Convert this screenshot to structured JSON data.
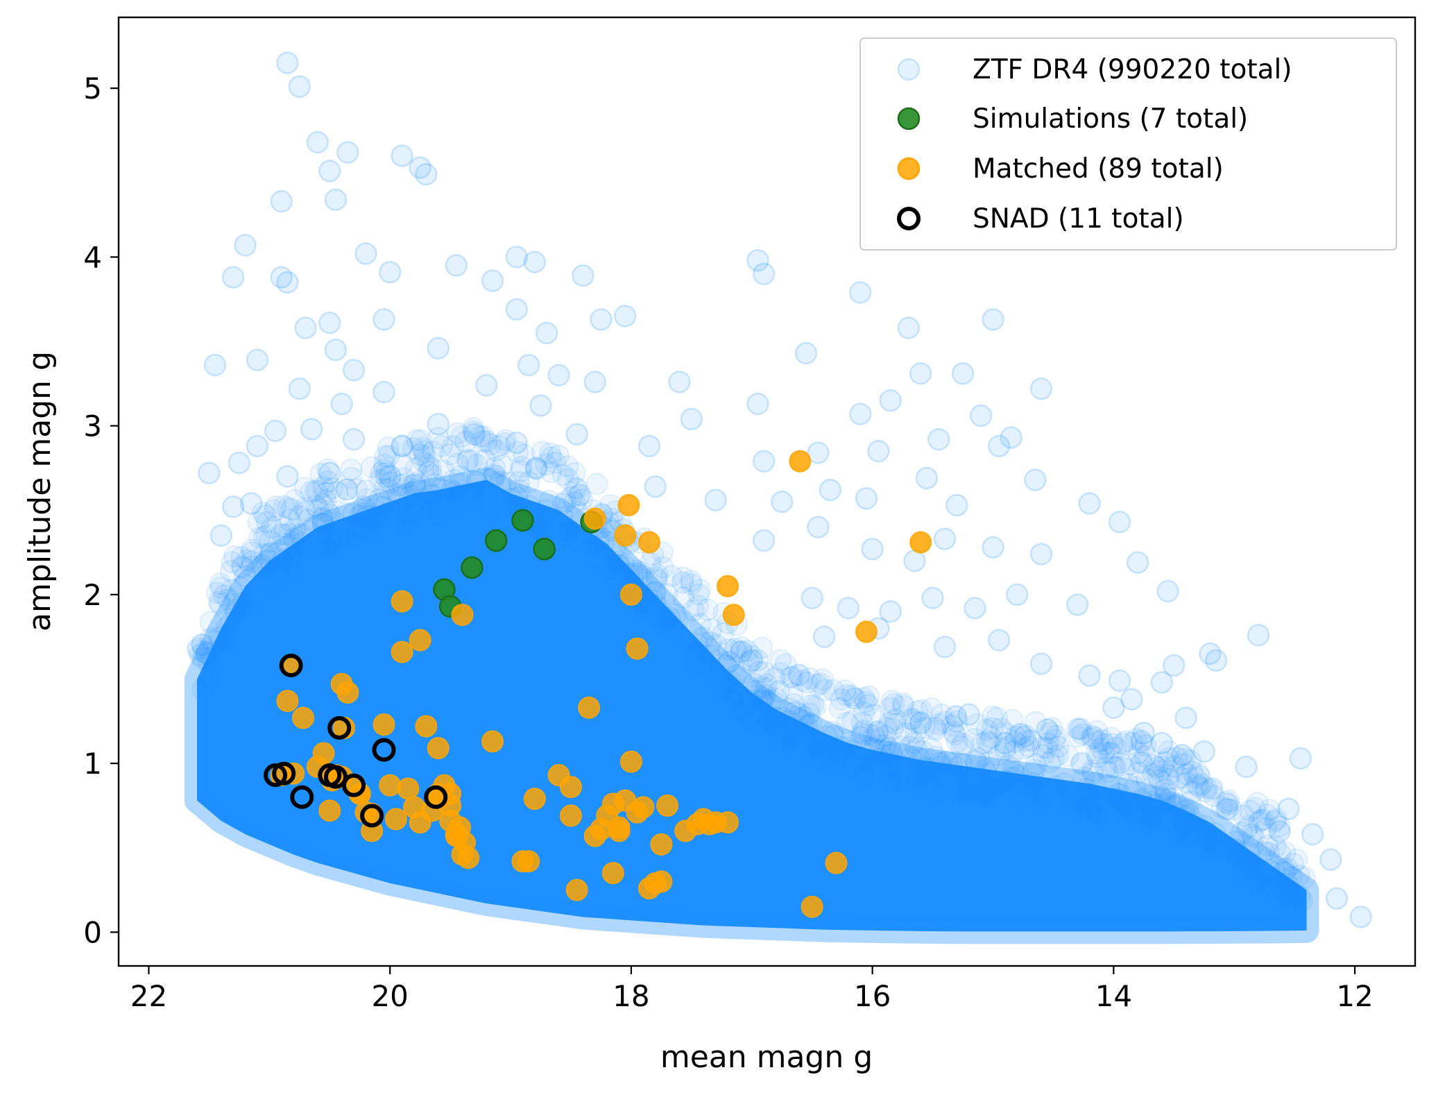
{
  "chart_data": {
    "type": "scatter",
    "title": "",
    "xlabel": "mean magn g",
    "ylabel": "amplitude magn g",
    "xlim": [
      22.25,
      11.5
    ],
    "ylim": [
      -0.2,
      5.42
    ],
    "x_inverted": true,
    "xticks": [
      22,
      20,
      18,
      16,
      14,
      12
    ],
    "yticks": [
      0,
      1,
      2,
      3,
      4,
      5
    ],
    "xtick_labels": [
      "22",
      "20",
      "18",
      "16",
      "14",
      "12"
    ],
    "ytick_labels": [
      "0",
      "1",
      "2",
      "3",
      "4",
      "5"
    ],
    "grid": false,
    "legend_position": "top-right",
    "colors": {
      "ztf": "#1e90ff",
      "simulations": "#228b22",
      "matched": "#ffa500",
      "snad_edge": "#000000"
    },
    "series": [
      {
        "name": "ZTF DR4 (990220 total)",
        "style": "faint-circle",
        "density_envelope": {
          "x": [
            21.6,
            21.4,
            21.2,
            21.0,
            20.8,
            20.6,
            20.4,
            20.2,
            20.0,
            19.8,
            19.6,
            19.4,
            19.2,
            19.0,
            18.8,
            18.6,
            18.4,
            18.2,
            18.0,
            17.8,
            17.6,
            17.4,
            17.2,
            17.0,
            16.8,
            16.6,
            16.4,
            16.2,
            16.0,
            15.8,
            15.6,
            15.4,
            15.2,
            15.0,
            14.8,
            14.6,
            14.4,
            14.2,
            14.0,
            13.8,
            13.6,
            13.4,
            13.2,
            13.0,
            12.8,
            12.6,
            12.4
          ],
          "lower": [
            0.78,
            0.66,
            0.58,
            0.52,
            0.46,
            0.41,
            0.37,
            0.33,
            0.29,
            0.26,
            0.23,
            0.2,
            0.17,
            0.15,
            0.13,
            0.11,
            0.09,
            0.08,
            0.07,
            0.06,
            0.05,
            0.04,
            0.035,
            0.03,
            0.025,
            0.02,
            0.015,
            0.012,
            0.01,
            0.008,
            0.006,
            0.005,
            0.004,
            0.004,
            0.004,
            0.004,
            0.004,
            0.004,
            0.004,
            0.004,
            0.004,
            0.005,
            0.005,
            0.006,
            0.007,
            0.008,
            0.01
          ],
          "upper": [
            1.5,
            1.8,
            2.05,
            2.2,
            2.3,
            2.4,
            2.45,
            2.5,
            2.55,
            2.6,
            2.62,
            2.65,
            2.68,
            2.6,
            2.55,
            2.5,
            2.4,
            2.3,
            2.15,
            2.0,
            1.85,
            1.7,
            1.55,
            1.42,
            1.32,
            1.25,
            1.18,
            1.12,
            1.08,
            1.05,
            1.02,
            1.0,
            0.98,
            0.96,
            0.94,
            0.92,
            0.9,
            0.88,
            0.85,
            0.82,
            0.78,
            0.72,
            0.65,
            0.55,
            0.45,
            0.35,
            0.25
          ]
        },
        "outliers": [
          [
            20.85,
            5.15
          ],
          [
            20.75,
            5.01
          ],
          [
            20.6,
            4.68
          ],
          [
            20.5,
            4.51
          ],
          [
            20.35,
            4.62
          ],
          [
            20.45,
            4.34
          ],
          [
            20.9,
            4.33
          ],
          [
            19.9,
            4.6
          ],
          [
            19.75,
            4.53
          ],
          [
            19.7,
            4.49
          ],
          [
            21.2,
            4.07
          ],
          [
            21.3,
            3.88
          ],
          [
            20.9,
            3.88
          ],
          [
            20.85,
            3.85
          ],
          [
            20.2,
            4.02
          ],
          [
            20.0,
            3.91
          ],
          [
            19.45,
            3.95
          ],
          [
            19.15,
            3.86
          ],
          [
            18.95,
            4.0
          ],
          [
            18.8,
            3.97
          ],
          [
            18.4,
            3.89
          ],
          [
            16.95,
            3.98
          ],
          [
            16.9,
            3.9
          ],
          [
            16.1,
            3.79
          ],
          [
            20.7,
            3.58
          ],
          [
            20.5,
            3.61
          ],
          [
            20.05,
            3.63
          ],
          [
            19.6,
            3.46
          ],
          [
            18.95,
            3.69
          ],
          [
            18.7,
            3.55
          ],
          [
            18.25,
            3.63
          ],
          [
            18.05,
            3.65
          ],
          [
            16.55,
            3.43
          ],
          [
            15.7,
            3.58
          ],
          [
            15.0,
            3.63
          ],
          [
            21.45,
            3.36
          ],
          [
            21.1,
            3.39
          ],
          [
            20.45,
            3.45
          ],
          [
            20.3,
            3.33
          ],
          [
            19.2,
            3.24
          ],
          [
            18.85,
            3.36
          ],
          [
            18.6,
            3.3
          ],
          [
            18.3,
            3.26
          ],
          [
            17.6,
            3.26
          ],
          [
            15.6,
            3.31
          ],
          [
            15.25,
            3.31
          ],
          [
            14.6,
            3.22
          ],
          [
            20.75,
            3.22
          ],
          [
            20.4,
            3.13
          ],
          [
            20.05,
            3.2
          ],
          [
            18.75,
            3.12
          ],
          [
            17.5,
            3.04
          ],
          [
            16.95,
            3.13
          ],
          [
            16.1,
            3.07
          ],
          [
            15.85,
            3.15
          ],
          [
            15.1,
            3.06
          ],
          [
            14.85,
            2.93
          ],
          [
            21.5,
            2.72
          ],
          [
            21.25,
            2.78
          ],
          [
            21.1,
            2.88
          ],
          [
            20.95,
            2.97
          ],
          [
            20.65,
            2.98
          ],
          [
            20.3,
            2.92
          ],
          [
            19.9,
            2.88
          ],
          [
            19.6,
            3.01
          ],
          [
            19.3,
            2.95
          ],
          [
            18.95,
            2.9
          ],
          [
            18.45,
            2.95
          ],
          [
            17.85,
            2.88
          ],
          [
            16.9,
            2.79
          ],
          [
            16.45,
            2.84
          ],
          [
            15.95,
            2.85
          ],
          [
            15.45,
            2.92
          ],
          [
            14.95,
            2.88
          ],
          [
            21.4,
            2.35
          ],
          [
            21.3,
            2.52
          ],
          [
            21.15,
            2.54
          ],
          [
            20.85,
            2.7
          ],
          [
            20.5,
            2.72
          ],
          [
            20.0,
            2.7
          ],
          [
            17.8,
            2.64
          ],
          [
            17.3,
            2.56
          ],
          [
            16.75,
            2.55
          ],
          [
            16.35,
            2.62
          ],
          [
            16.05,
            2.57
          ],
          [
            15.55,
            2.69
          ],
          [
            15.3,
            2.53
          ],
          [
            14.65,
            2.68
          ],
          [
            14.2,
            2.54
          ],
          [
            13.95,
            2.43
          ],
          [
            16.9,
            2.32
          ],
          [
            16.45,
            2.4
          ],
          [
            16.0,
            2.27
          ],
          [
            15.65,
            2.2
          ],
          [
            15.4,
            2.33
          ],
          [
            15.0,
            2.28
          ],
          [
            14.6,
            2.24
          ],
          [
            13.8,
            2.19
          ],
          [
            16.5,
            1.98
          ],
          [
            16.2,
            1.92
          ],
          [
            15.85,
            1.9
          ],
          [
            15.5,
            1.98
          ],
          [
            15.15,
            1.92
          ],
          [
            14.8,
            2.0
          ],
          [
            14.3,
            1.94
          ],
          [
            13.55,
            2.02
          ],
          [
            17.0,
            1.61
          ],
          [
            16.4,
            1.75
          ],
          [
            15.95,
            1.8
          ],
          [
            15.4,
            1.69
          ],
          [
            14.95,
            1.73
          ],
          [
            14.6,
            1.59
          ],
          [
            14.2,
            1.52
          ],
          [
            13.95,
            1.49
          ],
          [
            13.5,
            1.58
          ],
          [
            13.2,
            1.65
          ],
          [
            12.8,
            1.76
          ],
          [
            13.15,
            1.61
          ],
          [
            13.6,
            1.48
          ],
          [
            13.85,
            1.38
          ],
          [
            14.0,
            1.33
          ],
          [
            13.75,
            1.18
          ],
          [
            13.4,
            1.27
          ],
          [
            13.25,
            1.07
          ],
          [
            12.9,
            0.98
          ],
          [
            12.45,
            1.03
          ],
          [
            12.55,
            0.73
          ],
          [
            12.35,
            0.58
          ],
          [
            12.2,
            0.43
          ],
          [
            12.15,
            0.2
          ],
          [
            11.95,
            0.09
          ],
          [
            13.6,
            1.12
          ],
          [
            14.55,
            1.2
          ],
          [
            14.9,
            1.12
          ],
          [
            15.2,
            1.29
          ],
          [
            15.6,
            1.24
          ]
        ]
      },
      {
        "name": "Simulations (7 total)",
        "x": [
          19.55,
          19.5,
          19.32,
          19.12,
          18.9,
          18.72,
          18.33
        ],
        "y": [
          2.03,
          1.93,
          2.16,
          2.32,
          2.44,
          2.27,
          2.43
        ]
      },
      {
        "name": "Matched (89 total)",
        "x": [
          20.82,
          20.85,
          20.72,
          20.55,
          20.4,
          20.35,
          20.38,
          20.45,
          20.5,
          20.3,
          20.25,
          20.2,
          20.15,
          20.05,
          20.0,
          19.95,
          19.9,
          19.85,
          19.8,
          19.75,
          19.7,
          19.6,
          19.55,
          19.5,
          19.45,
          19.42,
          19.4,
          19.38,
          19.35,
          19.9,
          19.75,
          19.4,
          19.15,
          19.65,
          19.6,
          18.85,
          18.8,
          18.6,
          18.5,
          18.5,
          18.45,
          18.35,
          18.3,
          18.25,
          18.2,
          18.15,
          18.1,
          18.05,
          18.0,
          17.95,
          17.9,
          17.85,
          17.8,
          17.75,
          17.7,
          17.55,
          17.45,
          17.4,
          17.35,
          17.3,
          17.2,
          18.3,
          18.02,
          18.0,
          17.95,
          17.85,
          18.05,
          17.2,
          17.15,
          16.6,
          16.05,
          15.6,
          16.3,
          16.5,
          19.6,
          19.5,
          20.8,
          20.4,
          20.6,
          20.9,
          20.25,
          19.5,
          19.45,
          20.15,
          20.48,
          18.9,
          18.15,
          17.75,
          18.1
        ],
        "y": [
          1.58,
          1.37,
          1.27,
          1.06,
          1.47,
          1.42,
          1.21,
          0.93,
          0.72,
          0.87,
          0.82,
          0.71,
          0.6,
          1.23,
          0.87,
          0.67,
          1.66,
          0.85,
          0.74,
          1.73,
          1.22,
          1.09,
          0.87,
          0.66,
          0.57,
          0.62,
          0.46,
          0.53,
          0.44,
          1.96,
          0.65,
          1.88,
          1.13,
          0.72,
          0.82,
          0.42,
          0.79,
          0.93,
          0.86,
          0.69,
          0.25,
          1.33,
          0.57,
          0.61,
          0.69,
          0.35,
          0.6,
          0.78,
          1.01,
          0.71,
          0.74,
          0.26,
          0.29,
          0.52,
          0.75,
          0.6,
          0.64,
          0.67,
          0.64,
          0.65,
          0.65,
          2.45,
          2.53,
          2.0,
          1.68,
          2.31,
          2.35,
          2.05,
          1.88,
          2.79,
          1.78,
          2.31,
          0.41,
          0.15,
          0.79,
          0.75,
          0.94,
          0.92,
          0.98,
          0.93,
          0.82,
          0.82,
          0.58,
          0.7,
          0.9,
          0.42,
          0.76,
          0.3,
          0.62
        ]
      },
      {
        "name": "SNAD (11 total)",
        "x": [
          20.82,
          20.42,
          20.05,
          20.95,
          20.88,
          20.73,
          20.5,
          20.45,
          20.3,
          20.15,
          19.62
        ],
        "y": [
          1.58,
          1.21,
          1.08,
          0.93,
          0.94,
          0.8,
          0.93,
          0.92,
          0.87,
          0.69,
          0.8
        ]
      }
    ]
  }
}
